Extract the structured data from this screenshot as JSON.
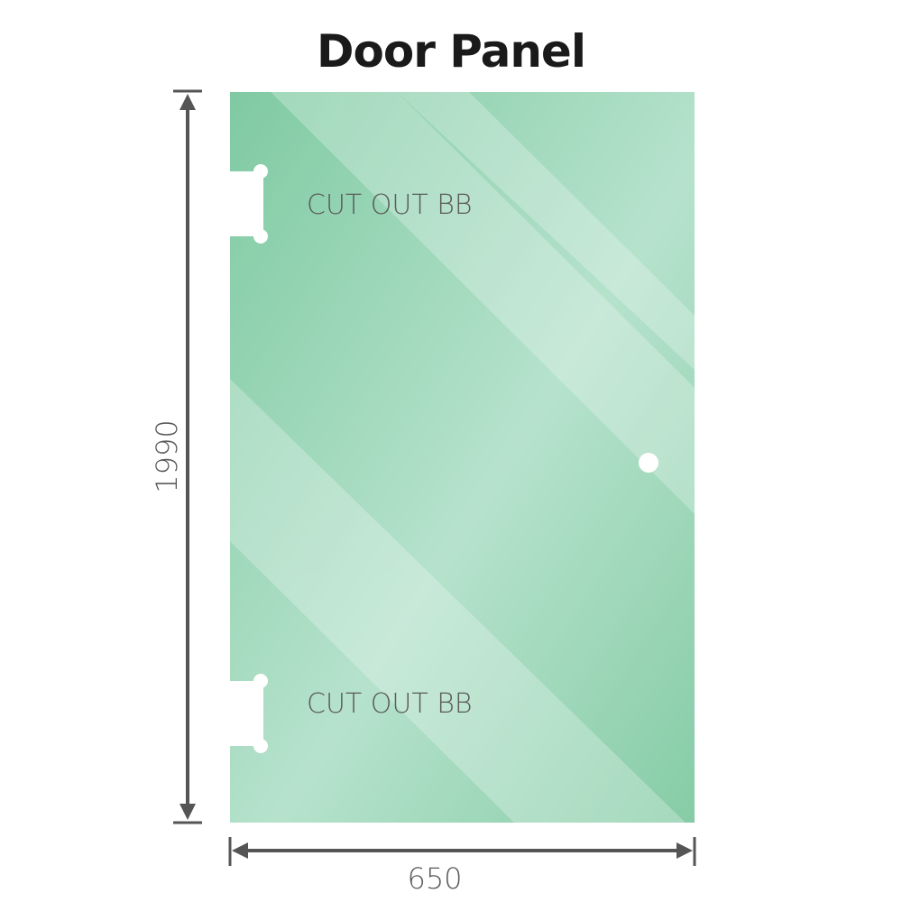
{
  "title": "Door Panel",
  "panel": {
    "color": "#8dcfad",
    "cutout_labels": [
      "CUT OUT BB",
      "CUT OUT BB"
    ]
  },
  "dimensions": {
    "height": "1990",
    "width": "650",
    "line_color": "#555555"
  }
}
